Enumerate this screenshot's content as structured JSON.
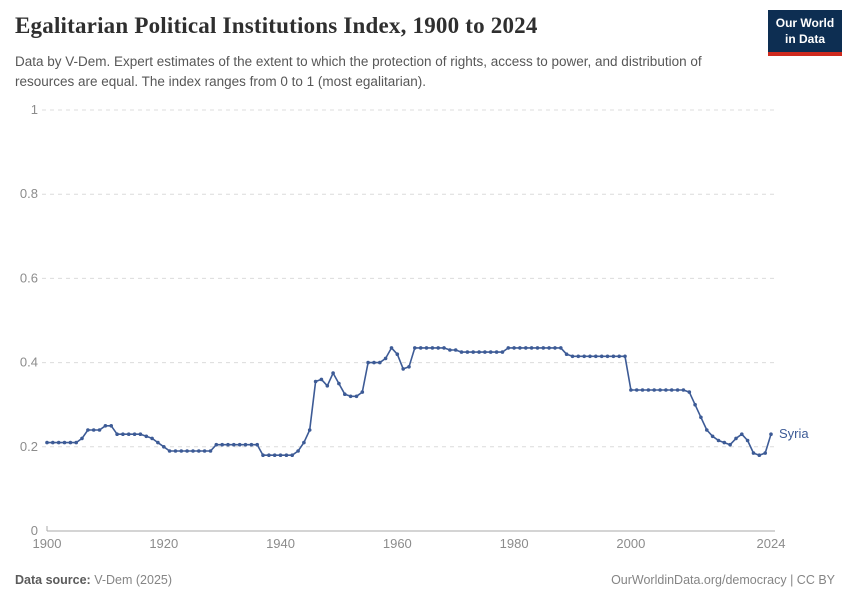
{
  "header": {
    "title": "Egalitarian Political Institutions Index, 1900 to 2024",
    "subtitle": "Data by V-Dem. Expert estimates of the extent to which the protection of rights, access to power, and distribution of resources are equal. The index ranges from 0 to 1 (most egalitarian).",
    "logo": {
      "line1": "Our World",
      "line2": "in Data",
      "bg_color": "#0d2e52",
      "accent_color": "#cf2a1e"
    }
  },
  "chart_data": {
    "type": "line",
    "title": "Egalitarian Political Institutions Index, 1900 to 2024",
    "xlabel": "",
    "ylabel": "",
    "xlim": [
      1900,
      2024
    ],
    "ylim": [
      0,
      1
    ],
    "x_ticks": [
      1900,
      1920,
      1940,
      1960,
      1980,
      2000,
      2024
    ],
    "y_ticks": [
      0,
      0.2,
      0.4,
      0.6,
      0.8,
      1
    ],
    "grid": "horizontal-dashed",
    "legend_position": "end-of-line-label",
    "series": [
      {
        "name": "Syria",
        "color": "#3d5b96",
        "points": [
          [
            1900,
            0.21
          ],
          [
            1901,
            0.21
          ],
          [
            1902,
            0.21
          ],
          [
            1903,
            0.21
          ],
          [
            1904,
            0.21
          ],
          [
            1905,
            0.21
          ],
          [
            1906,
            0.22
          ],
          [
            1907,
            0.24
          ],
          [
            1908,
            0.24
          ],
          [
            1909,
            0.24
          ],
          [
            1910,
            0.25
          ],
          [
            1911,
            0.25
          ],
          [
            1912,
            0.23
          ],
          [
            1913,
            0.23
          ],
          [
            1914,
            0.23
          ],
          [
            1915,
            0.23
          ],
          [
            1916,
            0.23
          ],
          [
            1917,
            0.225
          ],
          [
            1918,
            0.22
          ],
          [
            1919,
            0.21
          ],
          [
            1920,
            0.2
          ],
          [
            1921,
            0.19
          ],
          [
            1922,
            0.19
          ],
          [
            1923,
            0.19
          ],
          [
            1924,
            0.19
          ],
          [
            1925,
            0.19
          ],
          [
            1926,
            0.19
          ],
          [
            1927,
            0.19
          ],
          [
            1928,
            0.19
          ],
          [
            1929,
            0.205
          ],
          [
            1930,
            0.205
          ],
          [
            1931,
            0.205
          ],
          [
            1932,
            0.205
          ],
          [
            1933,
            0.205
          ],
          [
            1934,
            0.205
          ],
          [
            1935,
            0.205
          ],
          [
            1936,
            0.205
          ],
          [
            1937,
            0.18
          ],
          [
            1938,
            0.18
          ],
          [
            1939,
            0.18
          ],
          [
            1940,
            0.18
          ],
          [
            1941,
            0.18
          ],
          [
            1942,
            0.18
          ],
          [
            1943,
            0.19
          ],
          [
            1944,
            0.21
          ],
          [
            1945,
            0.24
          ],
          [
            1946,
            0.355
          ],
          [
            1947,
            0.36
          ],
          [
            1948,
            0.345
          ],
          [
            1949,
            0.375
          ],
          [
            1950,
            0.35
          ],
          [
            1951,
            0.325
          ],
          [
            1952,
            0.32
          ],
          [
            1953,
            0.32
          ],
          [
            1954,
            0.33
          ],
          [
            1955,
            0.4
          ],
          [
            1956,
            0.4
          ],
          [
            1957,
            0.4
          ],
          [
            1958,
            0.41
          ],
          [
            1959,
            0.435
          ],
          [
            1960,
            0.42
          ],
          [
            1961,
            0.385
          ],
          [
            1962,
            0.39
          ],
          [
            1963,
            0.435
          ],
          [
            1964,
            0.435
          ],
          [
            1965,
            0.435
          ],
          [
            1966,
            0.435
          ],
          [
            1967,
            0.435
          ],
          [
            1968,
            0.435
          ],
          [
            1969,
            0.43
          ],
          [
            1970,
            0.43
          ],
          [
            1971,
            0.425
          ],
          [
            1972,
            0.425
          ],
          [
            1973,
            0.425
          ],
          [
            1974,
            0.425
          ],
          [
            1975,
            0.425
          ],
          [
            1976,
            0.425
          ],
          [
            1977,
            0.425
          ],
          [
            1978,
            0.425
          ],
          [
            1979,
            0.435
          ],
          [
            1980,
            0.435
          ],
          [
            1981,
            0.435
          ],
          [
            1982,
            0.435
          ],
          [
            1983,
            0.435
          ],
          [
            1984,
            0.435
          ],
          [
            1985,
            0.435
          ],
          [
            1986,
            0.435
          ],
          [
            1987,
            0.435
          ],
          [
            1988,
            0.435
          ],
          [
            1989,
            0.42
          ],
          [
            1990,
            0.415
          ],
          [
            1991,
            0.415
          ],
          [
            1992,
            0.415
          ],
          [
            1993,
            0.415
          ],
          [
            1994,
            0.415
          ],
          [
            1995,
            0.415
          ],
          [
            1996,
            0.415
          ],
          [
            1997,
            0.415
          ],
          [
            1998,
            0.415
          ],
          [
            1999,
            0.415
          ],
          [
            2000,
            0.335
          ],
          [
            2001,
            0.335
          ],
          [
            2002,
            0.335
          ],
          [
            2003,
            0.335
          ],
          [
            2004,
            0.335
          ],
          [
            2005,
            0.335
          ],
          [
            2006,
            0.335
          ],
          [
            2007,
            0.335
          ],
          [
            2008,
            0.335
          ],
          [
            2009,
            0.335
          ],
          [
            2010,
            0.33
          ],
          [
            2011,
            0.3
          ],
          [
            2012,
            0.27
          ],
          [
            2013,
            0.24
          ],
          [
            2014,
            0.225
          ],
          [
            2015,
            0.215
          ],
          [
            2016,
            0.21
          ],
          [
            2017,
            0.205
          ],
          [
            2018,
            0.22
          ],
          [
            2019,
            0.23
          ],
          [
            2020,
            0.215
          ],
          [
            2021,
            0.185
          ],
          [
            2022,
            0.18
          ],
          [
            2023,
            0.185
          ],
          [
            2024,
            0.23
          ]
        ]
      }
    ]
  },
  "footer": {
    "source_label": "Data source:",
    "source_value": " V-Dem (2025)",
    "right_text": "OurWorldinData.org/democracy | CC BY"
  }
}
